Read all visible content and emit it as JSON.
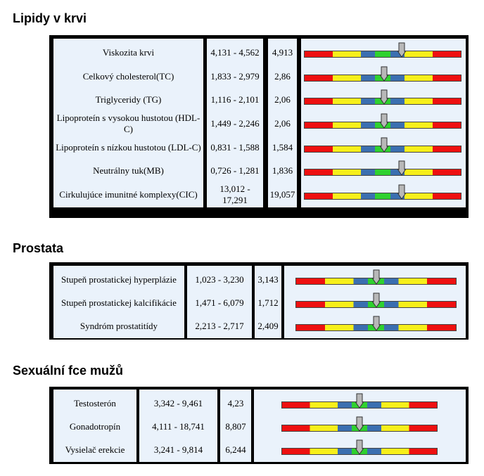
{
  "sections": [
    {
      "title": "Lipidy v krvi",
      "rows": [
        {
          "name": "Viskozita krvi",
          "range": "4,131 - 4,562",
          "value": "4,913",
          "level": 0.62
        },
        {
          "name": "Celkový cholesterol(TC)",
          "range": "1,833 - 2,979",
          "value": "2,86",
          "level": 0.51
        },
        {
          "name": "Triglyceridy (TG)",
          "range": "1,116 - 2,101",
          "value": "2,06",
          "level": 0.51
        },
        {
          "name": "Lipoproteín s vysokou hustotou (HDL-C)",
          "range": "1,449 - 2,246",
          "value": "2,06",
          "level": 0.51
        },
        {
          "name": "Lipoproteín s nízkou hustotou (LDL-C)",
          "range": "0,831 - 1,588",
          "value": "1,584",
          "level": 0.51
        },
        {
          "name": "Neutrálny tuk(MB)",
          "range": "0,726 - 1,281",
          "value": "1,836",
          "level": 0.62
        },
        {
          "name": "Cirkulujúce imunitné komplexy(CIC)",
          "range": "13,012 - 17,291",
          "value": "19,057",
          "level": 0.62
        }
      ]
    },
    {
      "title": "Prostata",
      "rows": [
        {
          "name": "Stupeň prostatickej hyperplázie",
          "range": "1,023 - 3,230",
          "value": "3,143",
          "level": 0.5
        },
        {
          "name": "Stupeň prostatickej kalcifikácie",
          "range": "1,471 - 6,079",
          "value": "1,712",
          "level": 0.5
        },
        {
          "name": "Syndróm prostatitídy",
          "range": "2,213 - 2,717",
          "value": "2,409",
          "level": 0.5
        }
      ]
    },
    {
      "title": "Sexuální fce mužů",
      "rows": [
        {
          "name": "Testosterón",
          "range": "3,342 - 9,461",
          "value": "4,23",
          "level": 0.5
        },
        {
          "name": "Gonadotropín",
          "range": "4,111 - 18,741",
          "value": "8,807",
          "level": 0.5
        },
        {
          "name": "Vysielač erekcie",
          "range": "3,241 - 9,814",
          "value": "6,244",
          "level": 0.5
        }
      ]
    }
  ],
  "colors": {
    "panel_bg": "#eaf2fb",
    "border": "#000000",
    "gauge": [
      "#ee1010",
      "#f7ef1a",
      "#3b6fb0",
      "#2fd12f",
      "#3b6fb0",
      "#f7ef1a",
      "#ee1010"
    ],
    "marker": "#b8b8b8"
  }
}
